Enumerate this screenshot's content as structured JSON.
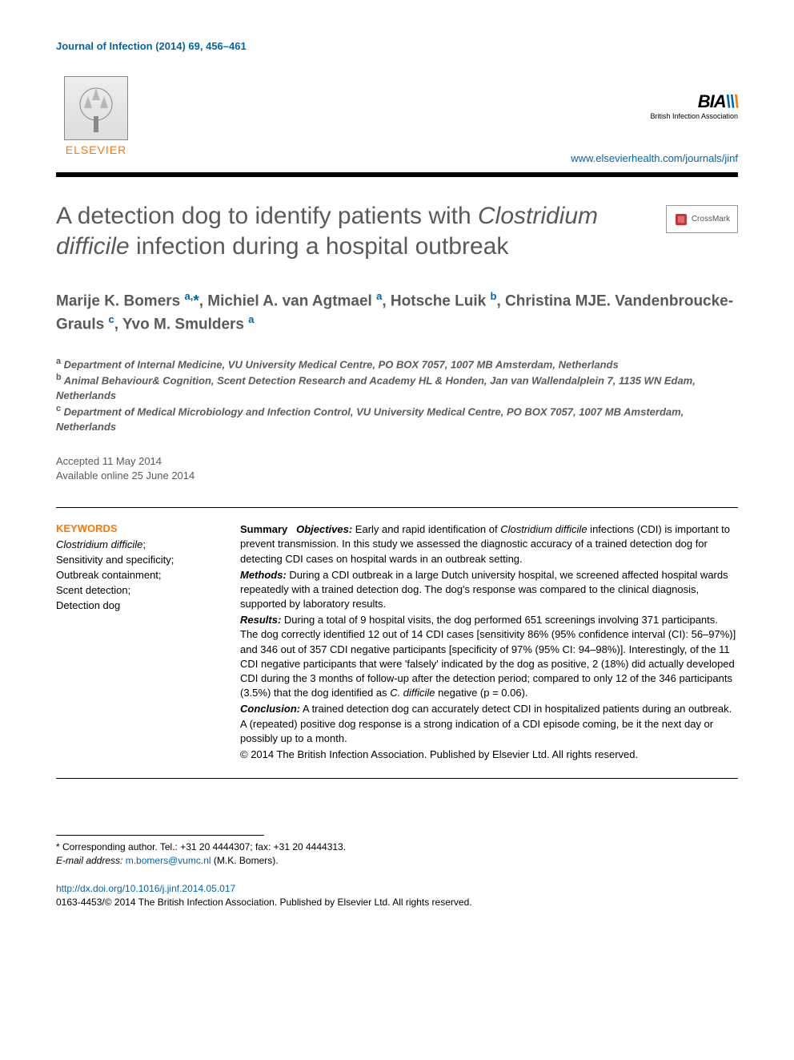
{
  "header": {
    "citation": "Journal of Infection (2014) 69, 456–461",
    "publisher_name": "ELSEVIER",
    "society_logo_text": "BIA",
    "society_name": "British Infection Association",
    "journal_url": "www.elsevierhealth.com/journals/jinf"
  },
  "title": {
    "pre": "A detection dog to identify patients with ",
    "italic": "Clostridium difficile",
    "post": " infection during a hospital outbreak"
  },
  "crossmark_label": "CrossMark",
  "authors": [
    {
      "name": "Marije K. Bomers",
      "aff": "a",
      "corr": true
    },
    {
      "name": "Michiel A. van Agtmael",
      "aff": "a",
      "corr": false
    },
    {
      "name": "Hotsche Luik",
      "aff": "b",
      "corr": false
    },
    {
      "name": "Christina MJE. Vandenbroucke-Grauls",
      "aff": "c",
      "corr": false
    },
    {
      "name": "Yvo M. Smulders",
      "aff": "a",
      "corr": false
    }
  ],
  "affiliations": [
    {
      "key": "a",
      "text": "Department of Internal Medicine, VU University Medical Centre, PO BOX 7057, 1007 MB Amsterdam, Netherlands"
    },
    {
      "key": "b",
      "text": "Animal Behaviour& Cognition, Scent Detection Research and Academy HL & Honden, Jan van Wallendalplein 7, 1135 WN Edam, Netherlands"
    },
    {
      "key": "c",
      "text": "Department of Medical Microbiology and Infection Control, VU University Medical Centre, PO BOX 7057, 1007 MB Amsterdam, Netherlands"
    }
  ],
  "dates": {
    "accepted": "Accepted 11 May 2014",
    "online": "Available online 25 June 2014"
  },
  "keywords": {
    "heading": "KEYWORDS",
    "items": [
      {
        "text": "Clostridium difficile",
        "italic": true,
        "suffix": ";"
      },
      {
        "text": "Sensitivity and specificity",
        "italic": false,
        "suffix": ";"
      },
      {
        "text": "Outbreak containment",
        "italic": false,
        "suffix": ";"
      },
      {
        "text": "Scent detection",
        "italic": false,
        "suffix": ";"
      },
      {
        "text": "Detection dog",
        "italic": false,
        "suffix": ""
      }
    ]
  },
  "summary": {
    "label_summary": "Summary",
    "objectives_label": "Objectives:",
    "objectives_pre": " Early and rapid identification of ",
    "objectives_italic": "Clostridium difficile",
    "objectives_post": " infections (CDI) is important to prevent transmission. In this study we assessed the diagnostic accuracy of a trained detection dog for detecting CDI cases on hospital wards in an outbreak setting.",
    "methods_label": "Methods:",
    "methods_text": " During a CDI outbreak in a large Dutch university hospital, we screened affected hospital wards repeatedly with a trained detection dog. The dog's response was compared to the clinical diagnosis, supported by laboratory results.",
    "results_label": "Results:",
    "results_text_pre": " During a total of 9 hospital visits, the dog performed 651 screenings involving 371 participants. The dog correctly identified 12 out of 14 CDI cases [sensitivity 86% (95% confidence interval (CI): 56–97%)] and 346 out of 357 CDI negative participants [specificity of 97% (95% CI: 94–98%)]. Interestingly, of the 11 CDI negative participants that were 'falsely' indicated by the dog as positive, 2 (18%) did actually developed CDI during the 3 months of follow-up after the detection period; compared to only 12 of the 346 participants (3.5%) that the dog identified as ",
    "results_italic": "C. difficile",
    "results_text_post": " negative (p = 0.06).",
    "conclusion_label": "Conclusion:",
    "conclusion_text": " A trained detection dog can accurately detect CDI in hospitalized patients during an outbreak. A (repeated) positive dog response is a strong indication of a CDI episode coming, be it the next day or possibly up to a month.",
    "copyright": "© 2014 The British Infection Association. Published by Elsevier Ltd. All rights reserved."
  },
  "corresponding": {
    "note": "* Corresponding author. Tel.: +31 20 4444307; fax: +31 20 4444313.",
    "email_label": "E-mail address:",
    "email": "m.bomers@vumc.nl",
    "email_attr": " (M.K. Bomers)."
  },
  "footer": {
    "doi": "http://dx.doi.org/10.1016/j.jinf.2014.05.017",
    "issn_copyright": "0163-4453/© 2014 The British Infection Association. Published by Elsevier Ltd. All rights reserved."
  },
  "colors": {
    "link_blue": "#0066aa",
    "elsevier_orange": "#ff7700",
    "heading_gray": "#5a5a5a",
    "text_black": "#000000",
    "background": "#ffffff"
  },
  "typography": {
    "body_fontsize": 14,
    "title_fontsize": 30,
    "author_fontsize": 19,
    "small_fontsize": 13,
    "footer_fontsize": 12
  }
}
